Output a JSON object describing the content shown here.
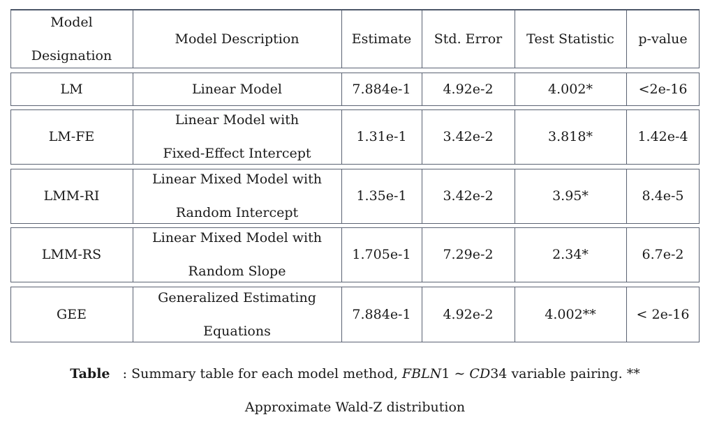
{
  "table": {
    "headers": [
      {
        "lines": [
          "Model",
          "Designation"
        ]
      },
      {
        "lines": [
          "Model Description"
        ]
      },
      {
        "lines": [
          "Estimate"
        ]
      },
      {
        "lines": [
          "Std. Error"
        ]
      },
      {
        "lines": [
          "Test Statistic"
        ]
      },
      {
        "lines": [
          "p-value"
        ]
      }
    ],
    "rows": [
      {
        "designation": "LM",
        "description": [
          "Linear Model"
        ],
        "estimate": "7.884e-1",
        "std_error": "4.92e-2",
        "test_statistic": "4.002*",
        "p_value": "<2e-16"
      },
      {
        "designation": "LM-FE",
        "description": [
          "Linear Model with",
          "Fixed-Effect Intercept"
        ],
        "estimate": "1.31e-1",
        "std_error": "3.42e-2",
        "test_statistic": "3.818*",
        "p_value": "1.42e-4"
      },
      {
        "designation": "LMM-RI",
        "description": [
          "Linear Mixed Model with",
          "Random Intercept"
        ],
        "estimate": "1.35e-1",
        "std_error": "3.42e-2",
        "test_statistic": "3.95*",
        "p_value": "8.4e-5"
      },
      {
        "designation": "LMM-RS",
        "description": [
          "Linear Mixed Model with",
          "Random Slope"
        ],
        "estimate": "1.705e-1",
        "std_error": "7.29e-2",
        "test_statistic": "2.34*",
        "p_value": "6.7e-2"
      },
      {
        "designation": "GEE",
        "description": [
          "Generalized Estimating",
          "Equations"
        ],
        "estimate": "7.884e-1",
        "std_error": "4.92e-2",
        "test_statistic": "4.002**",
        "p_value": "< 2e-16"
      }
    ]
  },
  "caption": {
    "label": "Table",
    "text_before": ": Summary table for each model method,",
    "math_a": "FBLN",
    "num_a": "1",
    "tilde": "∼",
    "math_b": "CD",
    "num_b": "34",
    "text_after": "variable pairing. **",
    "line2": "Approximate Wald-Z distribution"
  }
}
